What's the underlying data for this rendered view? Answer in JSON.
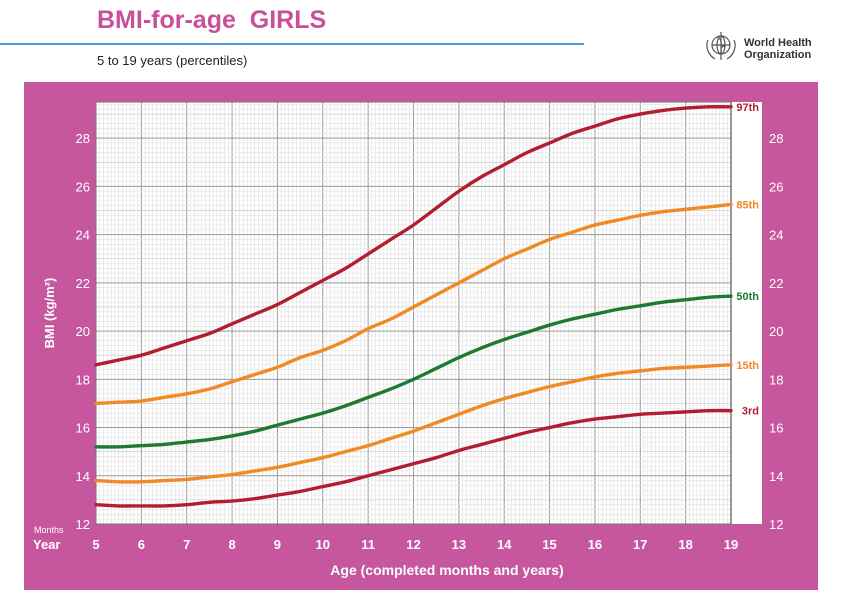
{
  "header": {
    "title": "BMI-for-age  GIRLS",
    "subtitle": "5 to 19 years (percentiles)",
    "org_line1": "World Health",
    "org_line2": "Organization",
    "org_logo_icon": "who-emblem-icon"
  },
  "colors": {
    "panel": "#c6579f",
    "title": "#c8509a",
    "rule": "#4b9ad8",
    "p3": "#b21e2f",
    "p15": "#f08a24",
    "p50": "#1e7a32",
    "p85": "#f08a24",
    "p97": "#b21e2f"
  },
  "chart_data": {
    "type": "line",
    "title": "BMI-for-age  GIRLS",
    "subtitle": "5 to 19 years (percentiles)",
    "xlabel": "Age (completed months and years)",
    "ylabel": "BMI (kg/m²)",
    "x_unit_months_label": "Months",
    "x_unit_years_label": "Year",
    "xlim": [
      5,
      19
    ],
    "ylim": [
      12,
      29.5
    ],
    "x_ticks": [
      5,
      6,
      7,
      8,
      9,
      10,
      11,
      12,
      13,
      14,
      15,
      16,
      17,
      18,
      19
    ],
    "y_ticks": [
      12,
      14,
      16,
      18,
      20,
      22,
      24,
      26,
      28
    ],
    "grid": true,
    "x": [
      5,
      5.5,
      6,
      6.5,
      7,
      7.5,
      8,
      8.5,
      9,
      9.5,
      10,
      10.5,
      11,
      11.5,
      12,
      12.5,
      13,
      13.5,
      14,
      14.5,
      15,
      15.5,
      16,
      16.5,
      17,
      17.5,
      18,
      18.5,
      19
    ],
    "series": [
      {
        "name": "97th",
        "color": "#b21e2f",
        "values": [
          18.6,
          18.8,
          19.0,
          19.3,
          19.6,
          19.9,
          20.3,
          20.7,
          21.1,
          21.6,
          22.1,
          22.6,
          23.2,
          23.8,
          24.4,
          25.1,
          25.8,
          26.4,
          26.9,
          27.4,
          27.8,
          28.2,
          28.5,
          28.8,
          29.0,
          29.15,
          29.25,
          29.3,
          29.3
        ]
      },
      {
        "name": "85th",
        "color": "#f08a24",
        "values": [
          17.0,
          17.05,
          17.1,
          17.25,
          17.4,
          17.6,
          17.9,
          18.2,
          18.5,
          18.9,
          19.2,
          19.6,
          20.1,
          20.5,
          21.0,
          21.5,
          22.0,
          22.5,
          23.0,
          23.4,
          23.8,
          24.1,
          24.4,
          24.6,
          24.8,
          24.95,
          25.05,
          25.15,
          25.25
        ]
      },
      {
        "name": "50th",
        "color": "#1e7a32",
        "values": [
          15.2,
          15.2,
          15.25,
          15.3,
          15.4,
          15.5,
          15.65,
          15.85,
          16.1,
          16.35,
          16.6,
          16.9,
          17.25,
          17.6,
          18.0,
          18.45,
          18.9,
          19.3,
          19.65,
          19.95,
          20.25,
          20.5,
          20.7,
          20.9,
          21.05,
          21.2,
          21.3,
          21.4,
          21.45
        ]
      },
      {
        "name": "15th",
        "color": "#f08a24",
        "values": [
          13.8,
          13.75,
          13.75,
          13.8,
          13.85,
          13.95,
          14.05,
          14.2,
          14.35,
          14.55,
          14.75,
          15.0,
          15.25,
          15.55,
          15.85,
          16.2,
          16.55,
          16.9,
          17.2,
          17.45,
          17.7,
          17.9,
          18.1,
          18.25,
          18.35,
          18.45,
          18.5,
          18.55,
          18.6
        ]
      },
      {
        "name": "3rd",
        "color": "#b21e2f",
        "values": [
          12.8,
          12.75,
          12.75,
          12.75,
          12.8,
          12.9,
          12.95,
          13.05,
          13.2,
          13.35,
          13.55,
          13.75,
          14.0,
          14.25,
          14.5,
          14.75,
          15.05,
          15.3,
          15.55,
          15.8,
          16.0,
          16.2,
          16.35,
          16.45,
          16.55,
          16.6,
          16.65,
          16.7,
          16.7
        ]
      }
    ]
  }
}
